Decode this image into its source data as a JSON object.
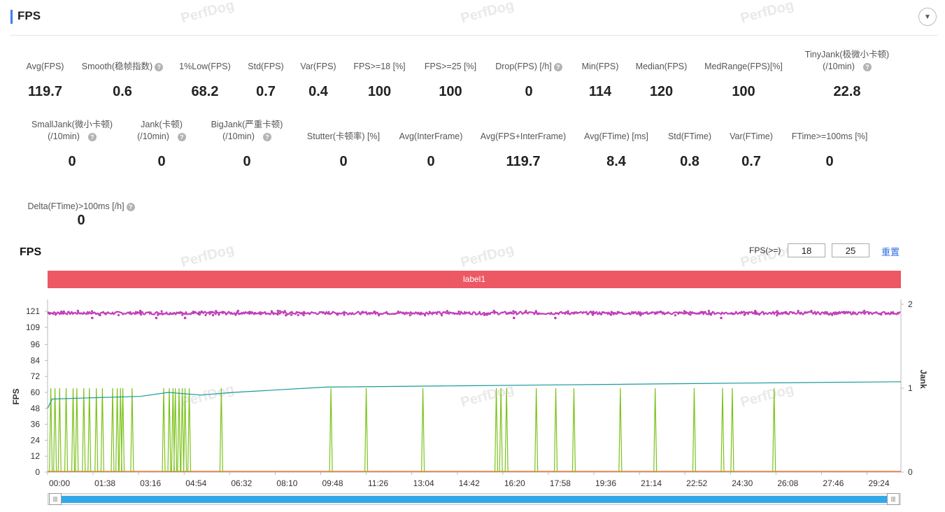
{
  "header": {
    "title": "FPS"
  },
  "watermark": "PerfDog",
  "metrics_row1": [
    {
      "label": "Avg(FPS)",
      "value": "119.7",
      "help": false
    },
    {
      "label": "Smooth(稳帧指数)",
      "value": "0.6",
      "help": true
    },
    {
      "label": "1%Low(FPS)",
      "value": "68.2",
      "help": false
    },
    {
      "label": "Std(FPS)",
      "value": "0.7",
      "help": false
    },
    {
      "label": "Var(FPS)",
      "value": "0.4",
      "help": false
    },
    {
      "label": "FPS>=18 [%]",
      "value": "100",
      "help": false
    },
    {
      "label": "FPS>=25 [%]",
      "value": "100",
      "help": false
    },
    {
      "label": "Drop(FPS) [/h]",
      "value": "0",
      "help": true
    },
    {
      "label": "Min(FPS)",
      "value": "114",
      "help": false
    },
    {
      "label": "Median(FPS)",
      "value": "120",
      "help": false
    },
    {
      "label": "MedRange(FPS)[%]",
      "value": "100",
      "help": false
    },
    {
      "label": "TinyJank(极微小卡顿)",
      "label2": "(/10min)",
      "value": "22.8",
      "help": true
    }
  ],
  "metrics_row2": [
    {
      "label": "SmallJank(微小卡顿)",
      "label2": "(/10min)",
      "value": "0",
      "help": true
    },
    {
      "label": "Jank(卡顿)",
      "label2": "(/10min)",
      "value": "0",
      "help": true
    },
    {
      "label": "BigJank(严重卡顿)",
      "label2": "(/10min)",
      "value": "0",
      "help": true
    },
    {
      "label": "Stutter(卡顿率) [%]",
      "value": "0",
      "help": false
    },
    {
      "label": "Avg(InterFrame)",
      "value": "0",
      "help": false
    },
    {
      "label": "Avg(FPS+InterFrame)",
      "value": "119.7",
      "help": false
    },
    {
      "label": "Avg(FTime) [ms]",
      "value": "8.4",
      "help": false
    },
    {
      "label": "Std(FTime)",
      "value": "0.8",
      "help": false
    },
    {
      "label": "Var(FTime)",
      "value": "0.7",
      "help": false
    },
    {
      "label": "FTime>=100ms [%]",
      "value": "0",
      "help": false
    }
  ],
  "metrics_row3": [
    {
      "label": "Delta(FTime)>100ms [/h]",
      "value": "0",
      "help": true
    }
  ],
  "fps_section": {
    "title": "FPS",
    "threshold_label": "FPS(>=)",
    "threshold1": "18",
    "threshold2": "25",
    "reset_label": "重置",
    "band_label": "label1"
  },
  "colors": {
    "fps": "#c040b8",
    "jank": "#7cc21a",
    "trend": "#1a9a9a",
    "floor": "#f07838",
    "band": "#ec5864",
    "slider": "#31a9e8"
  },
  "chart_data": {
    "type": "line",
    "xlabel": "",
    "ylabel": "FPS",
    "y2label": "Jank",
    "ylim": [
      0,
      130
    ],
    "y2lim": [
      0,
      2
    ],
    "yticks": [
      0,
      12,
      24,
      36,
      48,
      60,
      72,
      84,
      96,
      109,
      121
    ],
    "y2ticks": [
      0,
      1,
      2
    ],
    "xticks": [
      "00:00",
      "01:38",
      "03:16",
      "04:54",
      "06:32",
      "08:10",
      "09:48",
      "11:26",
      "13:04",
      "14:42",
      "16:20",
      "17:58",
      "19:36",
      "21:14",
      "22:52",
      "24:30",
      "26:08",
      "27:46",
      "29:24"
    ],
    "x_range_seconds": [
      0,
      1837
    ],
    "fps_mean": 119.7,
    "fps_band": [
      114,
      122
    ],
    "fps_dips_seconds": [
      96,
      234,
      296,
      1004,
      1093,
      1450
    ],
    "jank_spikes_seconds": [
      7,
      16,
      26,
      40,
      55,
      63,
      78,
      90,
      105,
      118,
      140,
      150,
      157,
      162,
      182,
      250,
      262,
      270,
      275,
      283,
      290,
      296,
      305,
      374,
      610,
      686,
      808,
      966,
      976,
      988,
      1052,
      1094,
      1133,
      1233,
      1308,
      1392,
      1453,
      1474,
      1564
    ],
    "jank_spike_value": 1.0,
    "trend_points": [
      [
        0,
        48
      ],
      [
        10,
        55
      ],
      [
        100,
        56
      ],
      [
        200,
        57
      ],
      [
        260,
        60
      ],
      [
        330,
        58
      ],
      [
        400,
        60
      ],
      [
        600,
        64
      ],
      [
        900,
        65
      ],
      [
        1200,
        66
      ],
      [
        1500,
        67
      ],
      [
        1837,
        68
      ]
    ],
    "floor_value": 1
  },
  "slider": {
    "handle_glyph": "|||"
  }
}
